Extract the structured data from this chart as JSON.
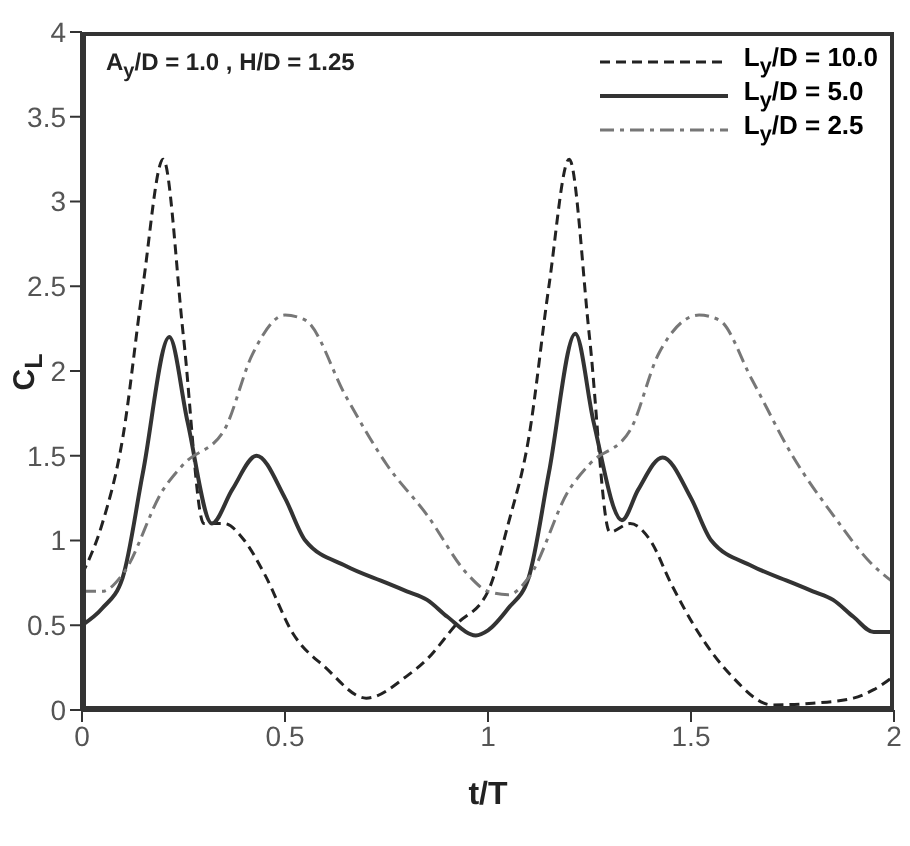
{
  "chart_data": {
    "type": "line",
    "xlabel": "t/T",
    "ylabel": "C$_{L}$",
    "annotations": [
      "A$_{y}$/D = 1.0 , H/D = 1.25"
    ],
    "xlim": [
      0,
      2
    ],
    "ylim": [
      0,
      4
    ],
    "xticks": [
      0,
      0.5,
      1,
      1.5,
      2
    ],
    "yticks": [
      0,
      0.5,
      1,
      1.5,
      2,
      2.5,
      3,
      3.5,
      4
    ],
    "grid": false,
    "legend": "top right",
    "marker": "none",
    "series": [
      {
        "name": "L$_{y}$/D = 10.0",
        "color": "#222222",
        "line_style": "dashed",
        "x": [
          0,
          0.05,
          0.1,
          0.15,
          0.2,
          0.25,
          0.3,
          0.35,
          0.4,
          0.45,
          0.52,
          0.6,
          0.7,
          0.8,
          0.85,
          0.92,
          1,
          1.05,
          1.1,
          1.15,
          1.2,
          1.25,
          1.3,
          1.35,
          1.4,
          1.45,
          1.52,
          1.6,
          1.7,
          1.8,
          1.9,
          1.95,
          2
        ],
        "values": [
          0.8,
          1.1,
          1.6,
          2.5,
          3.25,
          2.2,
          1.1,
          1.1,
          1.0,
          0.8,
          0.45,
          0.25,
          0.07,
          0.2,
          0.3,
          0.5,
          0.7,
          1.1,
          1.6,
          2.5,
          3.25,
          2.2,
          1.05,
          1.1,
          1.0,
          0.75,
          0.45,
          0.2,
          0.03,
          0.04,
          0.07,
          0.12,
          0.2
        ]
      },
      {
        "name": "L$_{y}$/D = 5.0",
        "color": "#333333",
        "line_style": "solid",
        "x": [
          0,
          0.05,
          0.1,
          0.15,
          0.215,
          0.26,
          0.32,
          0.37,
          0.43,
          0.5,
          0.55,
          0.65,
          0.75,
          0.8,
          0.85,
          0.9,
          0.97,
          1,
          1.05,
          1.1,
          1.15,
          1.215,
          1.26,
          1.33,
          1.37,
          1.43,
          1.5,
          1.55,
          1.65,
          1.75,
          1.8,
          1.85,
          1.9,
          1.95,
          2
        ],
        "values": [
          0.5,
          0.6,
          0.78,
          1.4,
          2.2,
          1.7,
          1.1,
          1.3,
          1.5,
          1.25,
          1.0,
          0.85,
          0.75,
          0.7,
          0.65,
          0.55,
          0.44,
          0.47,
          0.6,
          0.78,
          1.4,
          2.22,
          1.7,
          1.12,
          1.3,
          1.49,
          1.25,
          1.0,
          0.85,
          0.75,
          0.7,
          0.65,
          0.55,
          0.46,
          0.46
        ]
      },
      {
        "name": "L$_{y}$/D = 2.5",
        "color": "#777777",
        "line_style": "dotted",
        "x": [
          0,
          0.05,
          0.1,
          0.2,
          0.25,
          0.35,
          0.42,
          0.5,
          0.55,
          0.65,
          0.75,
          0.85,
          0.95,
          1,
          1.05,
          1.1,
          1.2,
          1.25,
          1.35,
          1.42,
          1.52,
          1.57,
          1.65,
          1.75,
          1.85,
          1.95,
          2
        ],
        "values": [
          0.7,
          0.7,
          0.8,
          1.3,
          1.45,
          1.65,
          2.1,
          2.33,
          2.3,
          1.85,
          1.45,
          1.15,
          0.8,
          0.7,
          0.68,
          0.78,
          1.3,
          1.45,
          1.65,
          2.1,
          2.33,
          2.3,
          1.95,
          1.5,
          1.15,
          0.85,
          0.75
        ]
      }
    ]
  }
}
